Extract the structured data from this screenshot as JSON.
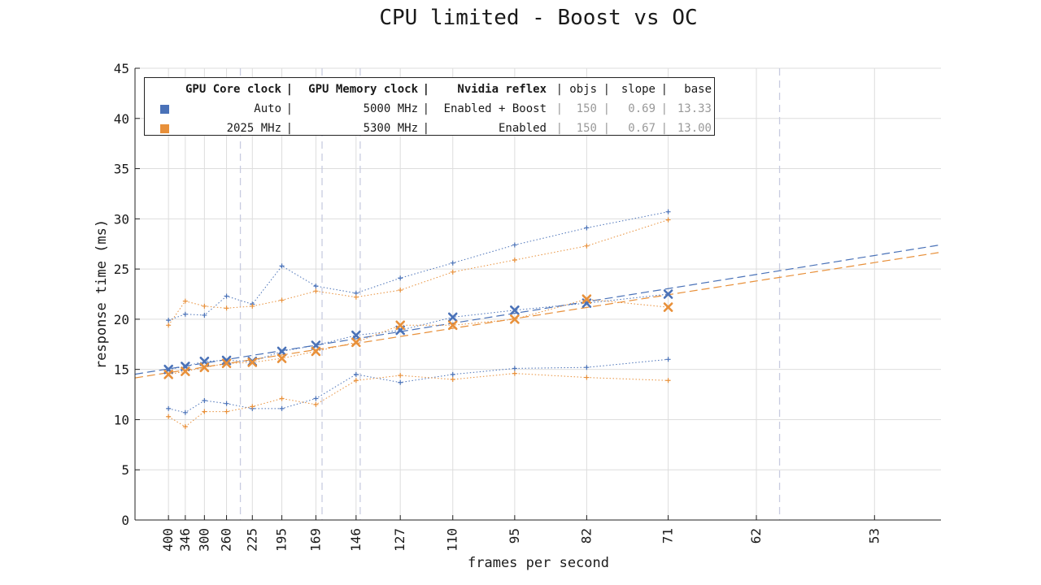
{
  "chart_data": {
    "type": "line",
    "title": "CPU limited - Boost vs OC",
    "xlabel": "frames per second",
    "ylabel": "response time (ms)",
    "x_scale": "reciprocal (frame time)",
    "ylim": [
      0,
      45
    ],
    "yticks": [
      0,
      5,
      10,
      15,
      20,
      25,
      30,
      35,
      40,
      45
    ],
    "xticks": [
      400,
      346,
      300,
      260,
      225,
      195,
      169,
      146,
      127,
      110,
      95,
      82,
      71,
      62,
      53
    ],
    "xlim_fps": [
      580,
      49
    ],
    "grid": true,
    "legend_placement": "top-left",
    "vertical_dashed_fps": [
      240,
      165,
      144,
      60
    ],
    "legend": {
      "headers": {
        "core": "GPU Core clock",
        "mem": "GPU Memory clock",
        "reflex": "Nvidia reflex",
        "objs": "objs",
        "slope": "slope",
        "base": "base"
      },
      "rows": [
        {
          "core": "Auto",
          "mem": "5000 MHz",
          "reflex": "Enabled + Boost",
          "objs": "150",
          "slope": "0.69",
          "base": "13.33"
        },
        {
          "core": "2025 MHz",
          "mem": "5300 MHz",
          "reflex": "Enabled",
          "objs": "150",
          "slope": "0.67",
          "base": "13.00"
        }
      ]
    },
    "x": [
      400,
      346,
      300,
      260,
      225,
      195,
      169,
      146,
      127,
      110,
      95,
      82,
      71
    ],
    "series": [
      {
        "color": "#4a72b8",
        "median": [
          15.0,
          15.3,
          15.8,
          15.9,
          15.8,
          16.8,
          17.4,
          18.4,
          18.9,
          20.2,
          20.9,
          21.6,
          22.5
        ],
        "max": [
          19.9,
          20.5,
          20.4,
          22.3,
          21.5,
          25.3,
          23.3,
          22.6,
          24.1,
          25.6,
          27.4,
          29.1,
          30.7
        ],
        "min": [
          11.1,
          10.7,
          11.9,
          11.6,
          11.1,
          11.1,
          12.1,
          14.5,
          13.7,
          14.5,
          15.1,
          15.2,
          16.0
        ],
        "fit_slope": 0.69,
        "fit_base": 13.33
      },
      {
        "color": "#e8903a",
        "median": [
          14.5,
          14.8,
          15.2,
          15.6,
          15.7,
          16.1,
          16.8,
          17.7,
          19.4,
          19.4,
          20.0,
          22.0,
          21.2
        ],
        "max": [
          19.4,
          21.8,
          21.3,
          21.1,
          21.3,
          21.9,
          22.8,
          22.2,
          22.9,
          24.7,
          25.9,
          27.3,
          29.9
        ],
        "min": [
          10.3,
          9.3,
          10.8,
          10.8,
          11.3,
          12.1,
          11.5,
          13.9,
          14.4,
          14.0,
          14.6,
          14.2,
          13.9
        ],
        "fit_slope": 0.67,
        "fit_base": 13.0
      }
    ]
  }
}
